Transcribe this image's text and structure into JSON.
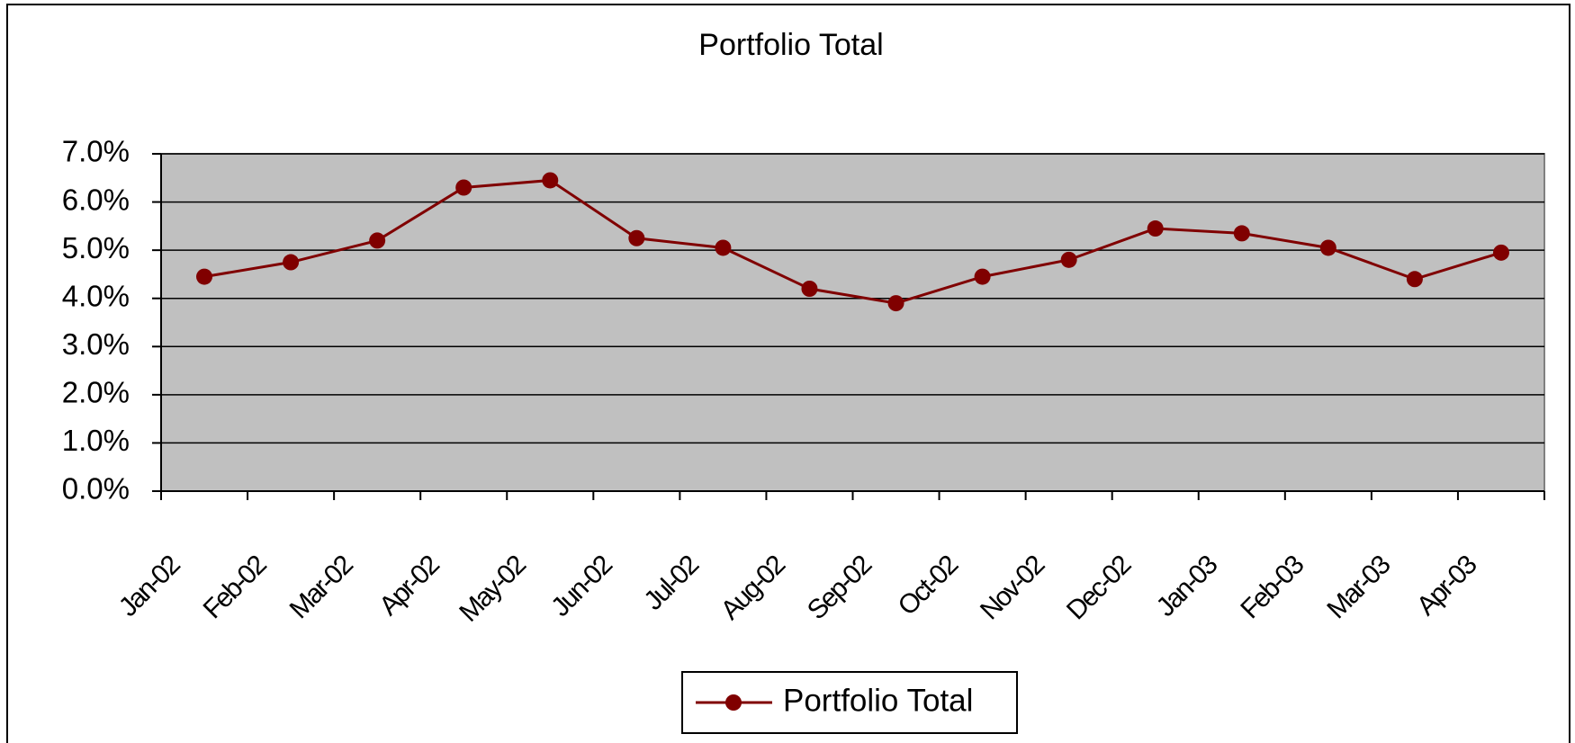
{
  "chart_data": {
    "type": "line",
    "title": "Portfolio Total",
    "categories": [
      "Jan-02",
      "Feb-02",
      "Mar-02",
      "Apr-02",
      "May-02",
      "Jun-02",
      "Jul-02",
      "Aug-02",
      "Sep-02",
      "Oct-02",
      "Nov-02",
      "Dec-02",
      "Jan-03",
      "Feb-03",
      "Mar-03",
      "Apr-03"
    ],
    "series": [
      {
        "name": "Portfolio Total",
        "color": "#800000",
        "values": [
          4.45,
          4.75,
          5.2,
          6.3,
          6.45,
          5.25,
          5.05,
          4.2,
          3.9,
          4.45,
          4.8,
          5.45,
          5.35,
          5.05,
          4.4,
          4.95
        ]
      }
    ],
    "ylim": [
      0,
      7
    ],
    "yticks": [
      {
        "value": 0,
        "label": "0.0%"
      },
      {
        "value": 1,
        "label": "1.0%"
      },
      {
        "value": 2,
        "label": "2.0%"
      },
      {
        "value": 3,
        "label": "3.0%"
      },
      {
        "value": 4,
        "label": "4.0%"
      },
      {
        "value": 5,
        "label": "5.0%"
      },
      {
        "value": 6,
        "label": "6.0%"
      },
      {
        "value": 7,
        "label": "7.0%"
      }
    ],
    "grid": true,
    "plot_background": "#c0c0c0",
    "legend": "bottom"
  }
}
